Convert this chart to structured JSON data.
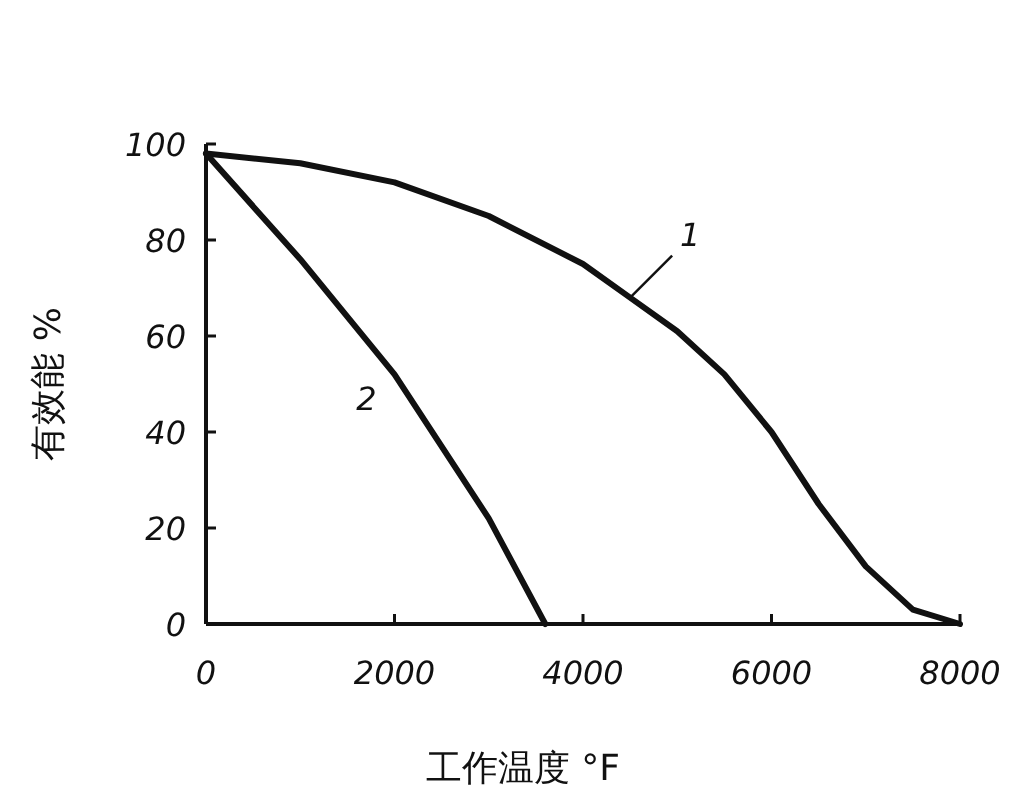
{
  "chart_data": {
    "type": "line",
    "xlabel": "工作温度 °F",
    "ylabel": "有效能 %",
    "xlim": [
      0,
      8000
    ],
    "ylim": [
      0,
      100
    ],
    "xticks": [
      0,
      2000,
      4000,
      6000,
      8000
    ],
    "yticks": [
      0,
      20,
      40,
      60,
      80,
      100
    ],
    "grid": false,
    "marker": "none",
    "line_style": "solid",
    "series": [
      {
        "name": "1",
        "color": "#111111",
        "x": [
          0,
          1000,
          2000,
          3000,
          4000,
          4500,
          5000,
          5500,
          6000,
          6500,
          7000,
          7500,
          8000
        ],
        "values": [
          98,
          96,
          92,
          85,
          75,
          68,
          61,
          52,
          40,
          25,
          12,
          3,
          0
        ]
      },
      {
        "name": "2",
        "color": "#111111",
        "x": [
          0,
          1000,
          2000,
          3000,
          3600
        ],
        "values": [
          98,
          76,
          52,
          22,
          0
        ]
      }
    ]
  }
}
